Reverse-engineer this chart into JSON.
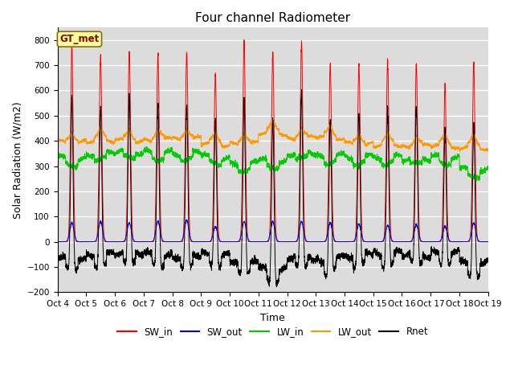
{
  "title": "Four channel Radiometer",
  "xlabel": "Time",
  "ylabel": "Solar Radiation (W/m2)",
  "ylim": [
    -200,
    850
  ],
  "yticks": [
    -200,
    -100,
    0,
    100,
    200,
    300,
    400,
    500,
    600,
    700,
    800
  ],
  "xlim": [
    0,
    15
  ],
  "xtick_labels": [
    "Oct 4",
    "Oct 5",
    "Oct 6",
    "Oct 7",
    "Oct 8",
    "Oct 9",
    "Oct 10",
    "Oct 11",
    "Oct 12",
    "Oct 13",
    "Oct 14",
    "Oct 15",
    "Oct 16",
    "Oct 17",
    "Oct 18",
    "Oct 19"
  ],
  "bg_color": "#dcdcdc",
  "annotation_text": "GT_met",
  "annotation_box_color": "#ffff99",
  "annotation_box_edge": "#8B6914",
  "colors": {
    "SW_in": "#ff0000",
    "SW_out": "#0000ff",
    "LW_in": "#00cc00",
    "LW_out": "#ff9900",
    "Rnet": "#000000"
  },
  "n_days": 15,
  "num_points_per_day": 288,
  "sw_in_peaks": [
    775,
    740,
    755,
    745,
    750,
    670,
    790,
    745,
    790,
    700,
    700,
    710,
    705,
    620,
    710
  ],
  "sw_out_peaks": [
    75,
    80,
    75,
    80,
    85,
    60,
    80,
    80,
    80,
    75,
    70,
    65,
    68,
    62,
    75
  ],
  "lw_in_base": [
    330,
    350,
    355,
    355,
    350,
    335,
    310,
    320,
    350,
    340,
    335,
    335,
    330,
    335,
    285
  ],
  "lw_out_base": [
    395,
    400,
    400,
    405,
    408,
    385,
    390,
    430,
    410,
    412,
    388,
    383,
    378,
    378,
    372
  ]
}
